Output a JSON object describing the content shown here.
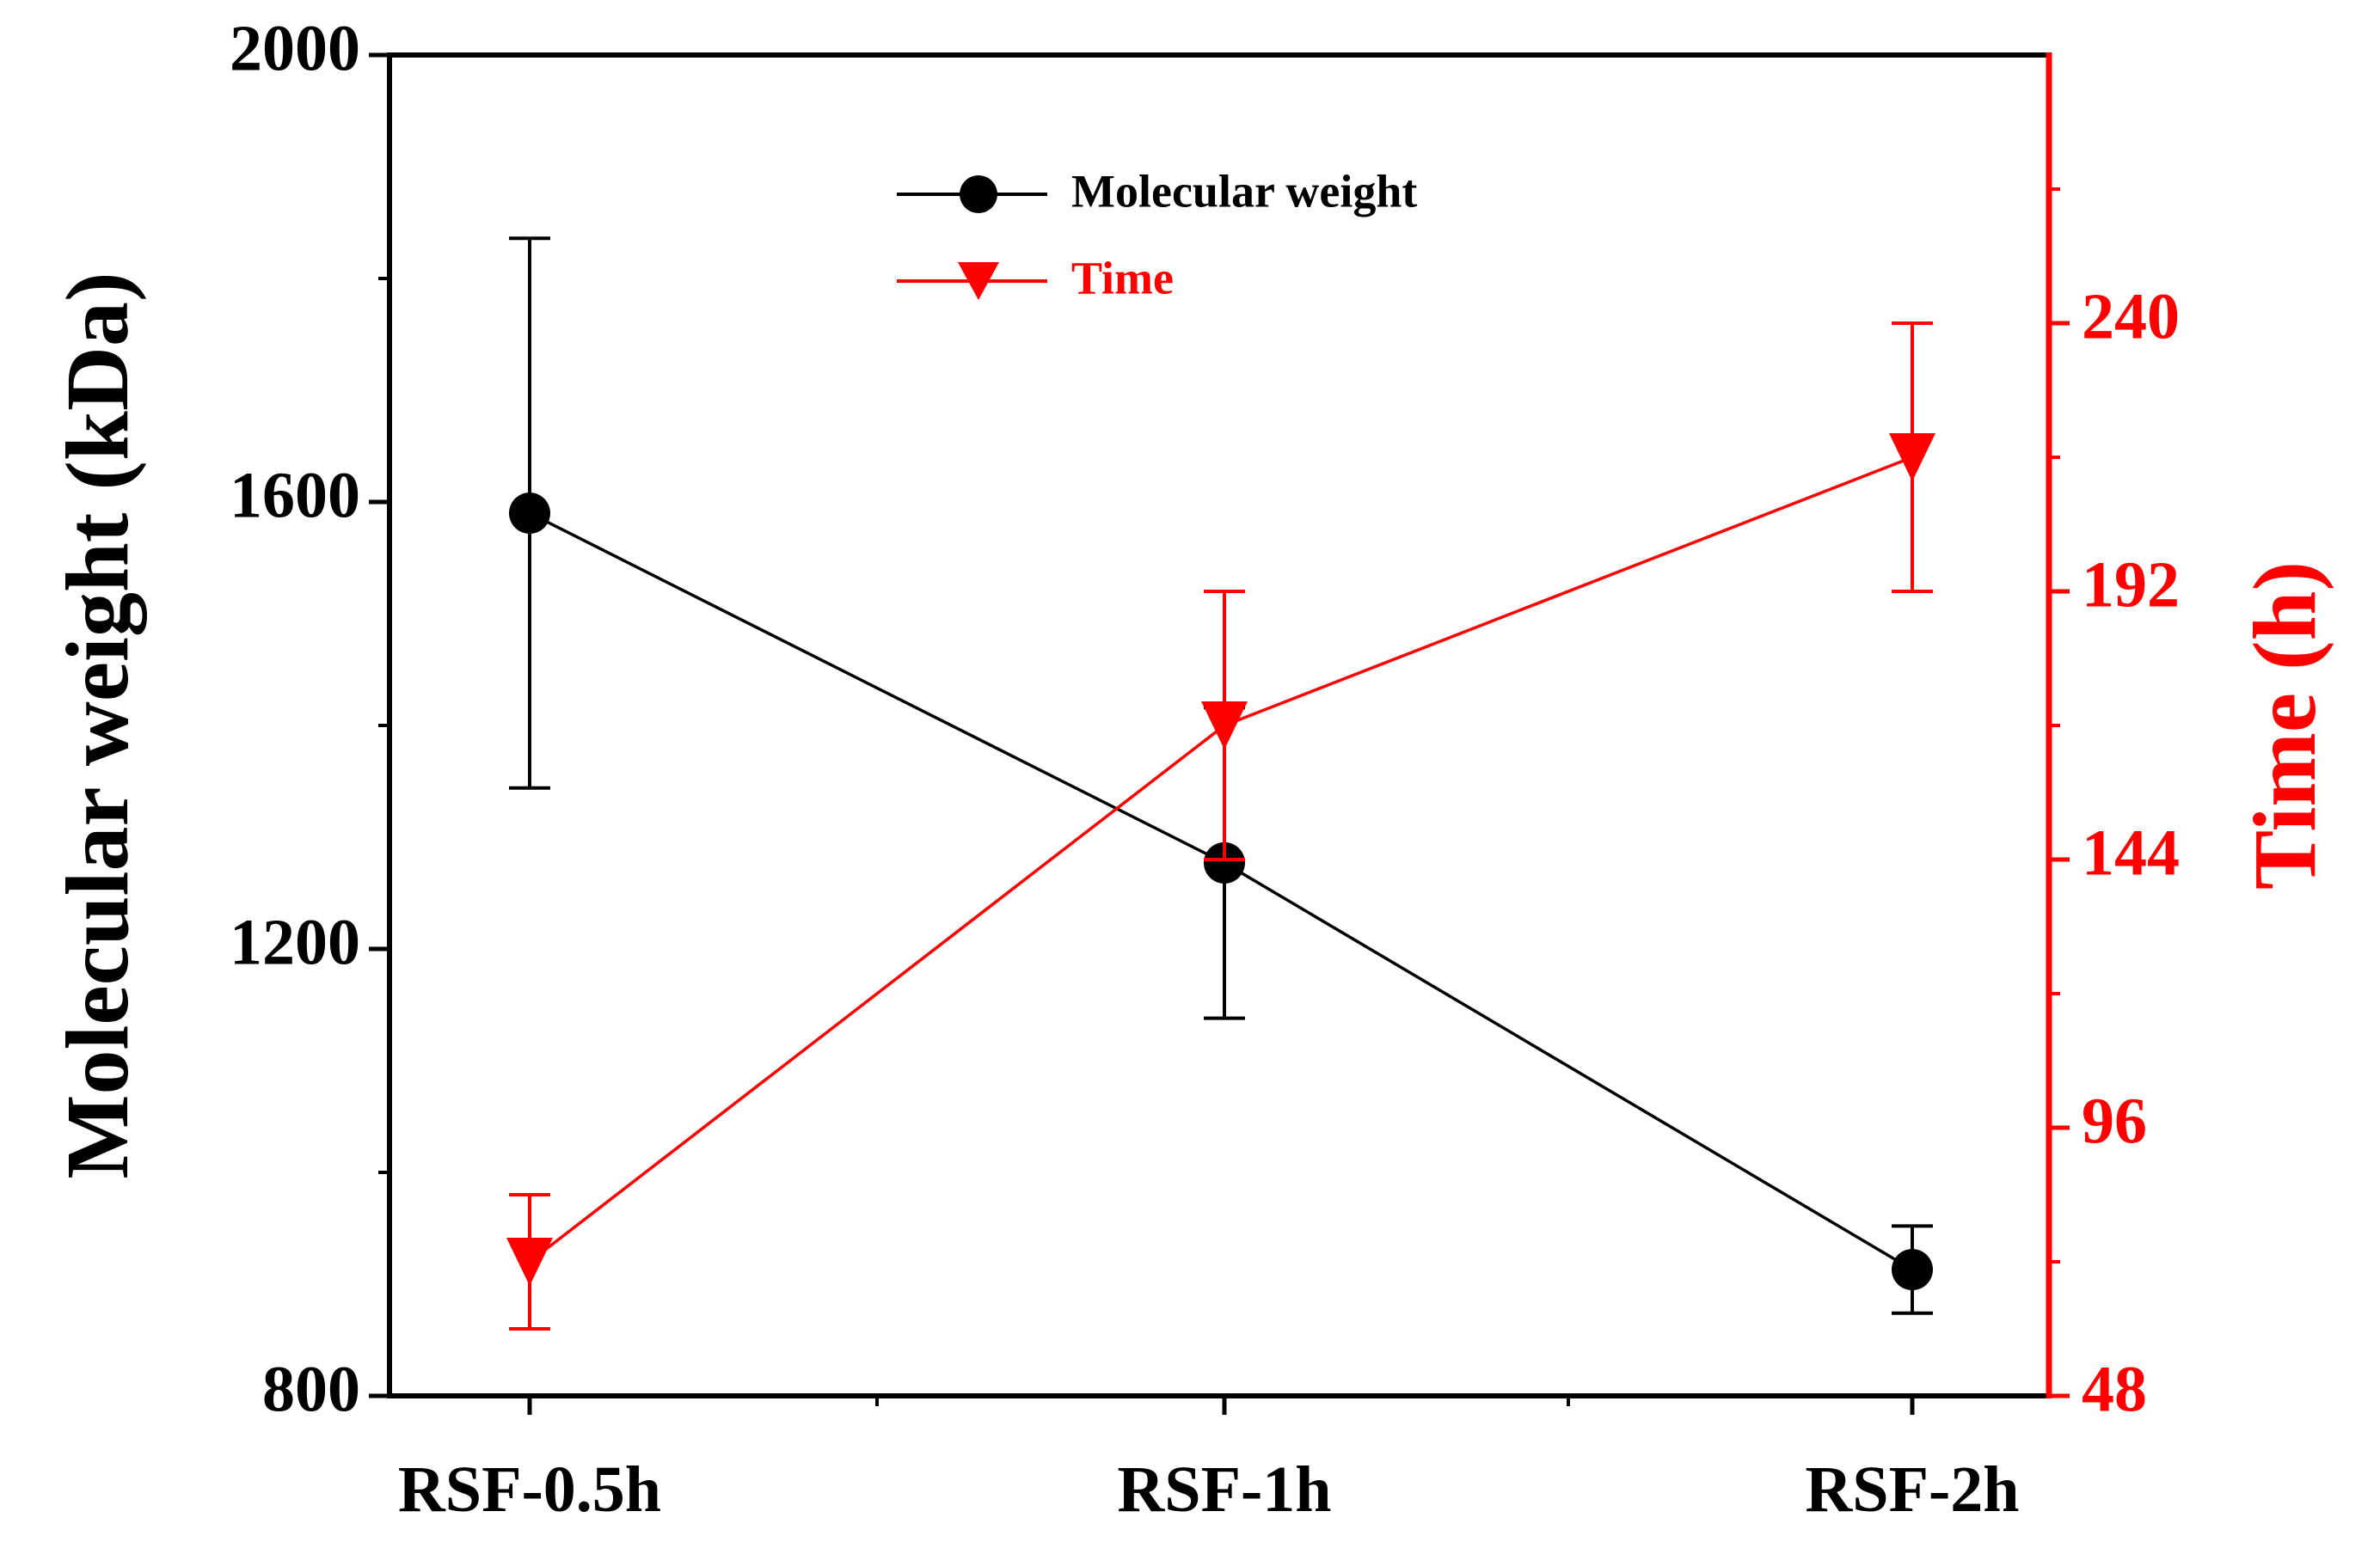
{
  "chart_data": {
    "type": "line",
    "categories": [
      "RSF-0.5h",
      "RSF-1h",
      "RSF-2h"
    ],
    "series": [
      {
        "name": "Molecular weight",
        "axis": "left",
        "color": "#000000",
        "marker": "circle",
        "values": [
          1590,
          1277,
          913
        ],
        "errors": [
          246,
          139,
          39
        ]
      },
      {
        "name": "Time",
        "axis": "right",
        "color": "#ff0000",
        "marker": "triangle-down",
        "values": [
          72,
          168,
          216
        ],
        "errors": [
          12,
          24,
          24
        ]
      }
    ],
    "y_left": {
      "label": "Molecular weight (kDa)",
      "range": [
        800,
        2000
      ],
      "ticks": [
        800,
        1200,
        1600,
        2000
      ],
      "tick_labels": [
        "800",
        "1200",
        "1600",
        "2000"
      ],
      "color": "#000000"
    },
    "y_right": {
      "label": "Time (h)",
      "range": [
        48,
        288
      ],
      "ticks": [
        48,
        96,
        144,
        192,
        240
      ],
      "tick_labels": [
        "48",
        "96",
        "144",
        "192",
        "240"
      ],
      "color": "#ff0000"
    },
    "legend": {
      "position": "top-center",
      "entries": [
        "Molecular weight",
        "Time"
      ]
    },
    "grid": false
  }
}
